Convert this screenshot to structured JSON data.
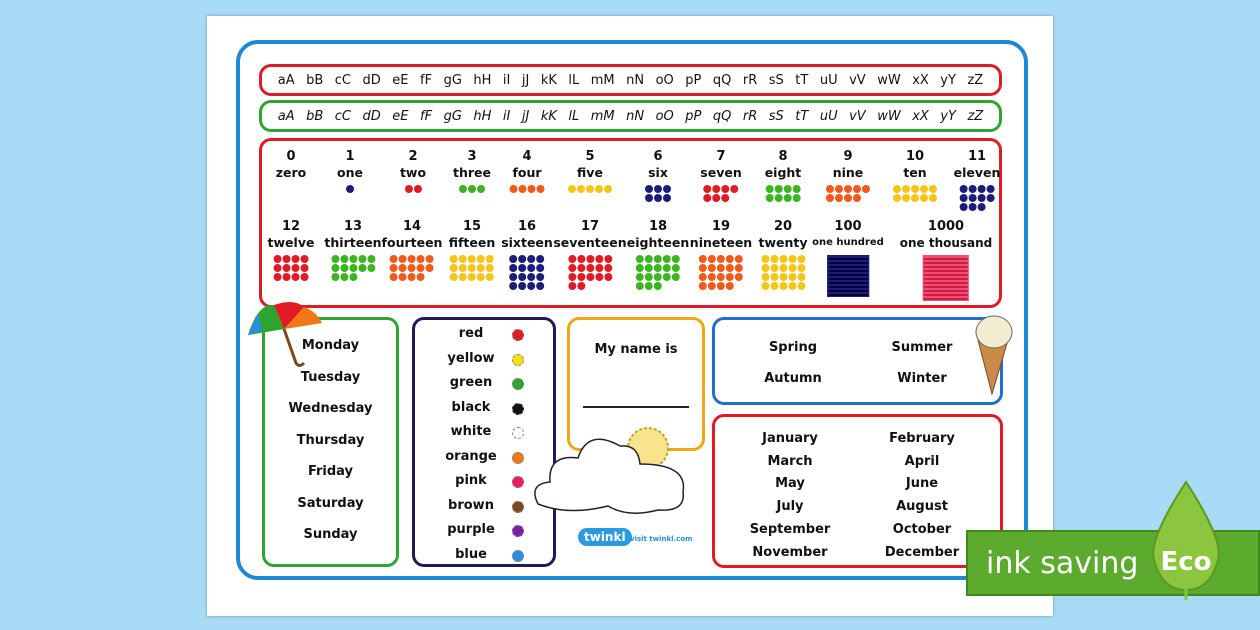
{
  "alphabet_print": [
    "aA",
    "bB",
    "cC",
    "dD",
    "eE",
    "fF",
    "gG",
    "hH",
    "iI",
    "jJ",
    "kK",
    "lL",
    "mM",
    "nN",
    "oO",
    "pP",
    "qQ",
    "rR",
    "sS",
    "tT",
    "uU",
    "vV",
    "wW",
    "xX",
    "yY",
    "zZ"
  ],
  "alphabet_cursive": [
    "aA",
    "bB",
    "cC",
    "dD",
    "eE",
    "fF",
    "gG",
    "hH",
    "iI",
    "jJ",
    "kK",
    "lL",
    "mM",
    "nN",
    "oO",
    "pP",
    "qQ",
    "rR",
    "sS",
    "tT",
    "uU",
    "vV",
    "wW",
    "xX",
    "yY",
    "zZ"
  ],
  "numbers": [
    {
      "n": "0",
      "w": "zero",
      "count": 0,
      "color": ""
    },
    {
      "n": "1",
      "w": "one",
      "count": 1,
      "color": "#1c1c7a"
    },
    {
      "n": "2",
      "w": "two",
      "count": 2,
      "color": "#e01b24"
    },
    {
      "n": "3",
      "w": "three",
      "count": 3,
      "color": "#3cb521"
    },
    {
      "n": "4",
      "w": "four",
      "count": 4,
      "color": "#f05a1c"
    },
    {
      "n": "5",
      "w": "five",
      "count": 5,
      "color": "#f5c518"
    },
    {
      "n": "6",
      "w": "six",
      "count": 6,
      "color": "#1c1c7a"
    },
    {
      "n": "7",
      "w": "seven",
      "count": 7,
      "color": "#e01b24"
    },
    {
      "n": "8",
      "w": "eight",
      "count": 8,
      "color": "#3cb521"
    },
    {
      "n": "9",
      "w": "nine",
      "count": 9,
      "color": "#f05a1c"
    },
    {
      "n": "10",
      "w": "ten",
      "count": 10,
      "color": "#f5c518"
    },
    {
      "n": "11",
      "w": "eleven",
      "count": 11,
      "color": "#1c1c7a"
    },
    {
      "n": "12",
      "w": "twelve",
      "count": 12,
      "color": "#e01b24"
    },
    {
      "n": "13",
      "w": "thirteen",
      "count": 13,
      "color": "#3cb521"
    },
    {
      "n": "14",
      "w": "fourteen",
      "count": 14,
      "color": "#f05a1c"
    },
    {
      "n": "15",
      "w": "fifteen",
      "count": 15,
      "color": "#f5c518"
    },
    {
      "n": "16",
      "w": "sixteen",
      "count": 16,
      "color": "#1c1c7a"
    },
    {
      "n": "17",
      "w": "seventeen",
      "count": 17,
      "color": "#e01b24"
    },
    {
      "n": "18",
      "w": "eighteen",
      "count": 18,
      "color": "#3cb521"
    },
    {
      "n": "19",
      "w": "nineteen",
      "count": 19,
      "color": "#f05a1c"
    },
    {
      "n": "20",
      "w": "twenty",
      "count": 20,
      "color": "#f5c518"
    },
    {
      "n": "100",
      "w": "one hundred",
      "count": 100,
      "color": "#1c1c7a"
    },
    {
      "n": "1000",
      "w": "one thousand",
      "count": 1000,
      "color": "#e8507a"
    }
  ],
  "days": [
    "Monday",
    "Tuesday",
    "Wednesday",
    "Thursday",
    "Friday",
    "Saturday",
    "Sunday"
  ],
  "colours": [
    {
      "name": "red",
      "color": "#e01b24"
    },
    {
      "name": "yellow",
      "color": "#f7e017"
    },
    {
      "name": "green",
      "color": "#2ea52e"
    },
    {
      "name": "black",
      "color": "#111111"
    },
    {
      "name": "white",
      "color": "#ffffff"
    },
    {
      "name": "orange",
      "color": "#f07818"
    },
    {
      "name": "pink",
      "color": "#e8205a"
    },
    {
      "name": "brown",
      "color": "#7a4a1e"
    },
    {
      "name": "purple",
      "color": "#7a1fa2"
    },
    {
      "name": "blue",
      "color": "#2a8ee0"
    }
  ],
  "name_label": "My name is",
  "seasons": [
    "Spring",
    "Summer",
    "Autumn",
    "Winter"
  ],
  "months": [
    "January",
    "February",
    "March",
    "April",
    "May",
    "June",
    "July",
    "August",
    "September",
    "October",
    "November",
    "December"
  ],
  "logo": "twinkl",
  "visit": "visit twinkl.com",
  "banner": {
    "text": "ink saving",
    "badge": "Eco"
  }
}
